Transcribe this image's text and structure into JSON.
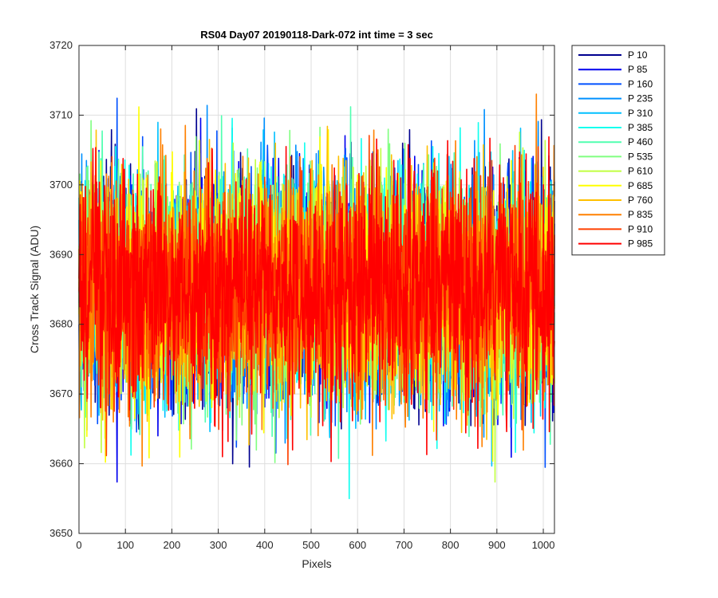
{
  "chart_data": {
    "type": "line",
    "title": "RS04 Day07 20190118-Dark-072 int time = 3 sec",
    "xlabel": "Pixels",
    "ylabel": "Cross Track Signal (ADU)",
    "xlim": [
      0,
      1024
    ],
    "ylim": [
      3650,
      3720
    ],
    "xticks": [
      0,
      100,
      200,
      300,
      400,
      500,
      600,
      700,
      800,
      900,
      1000
    ],
    "yticks": [
      3650,
      3660,
      3670,
      3680,
      3690,
      3700,
      3710,
      3720
    ],
    "grid": true,
    "legend_position": "outside-top-right",
    "noise_summary": {
      "mean": 3685,
      "typical_range": [
        3667,
        3703
      ],
      "extreme_range": [
        3655,
        3714
      ]
    },
    "series": [
      {
        "name": "P 10",
        "color": "#00008f"
      },
      {
        "name": "P 85",
        "color": "#0000ef"
      },
      {
        "name": "P 160",
        "color": "#0050ff"
      },
      {
        "name": "P 235",
        "color": "#0090ff"
      },
      {
        "name": "P 310",
        "color": "#00c0ff"
      },
      {
        "name": "P 385",
        "color": "#10ffef"
      },
      {
        "name": "P 460",
        "color": "#50ffb0"
      },
      {
        "name": "P 535",
        "color": "#80ff80"
      },
      {
        "name": "P 610",
        "color": "#c0ff40"
      },
      {
        "name": "P 685",
        "color": "#ffff00"
      },
      {
        "name": "P 760",
        "color": "#ffc000"
      },
      {
        "name": "P 835",
        "color": "#ff8000"
      },
      {
        "name": "P 910",
        "color": "#ff4000"
      },
      {
        "name": "P 985",
        "color": "#ff0000"
      }
    ]
  }
}
